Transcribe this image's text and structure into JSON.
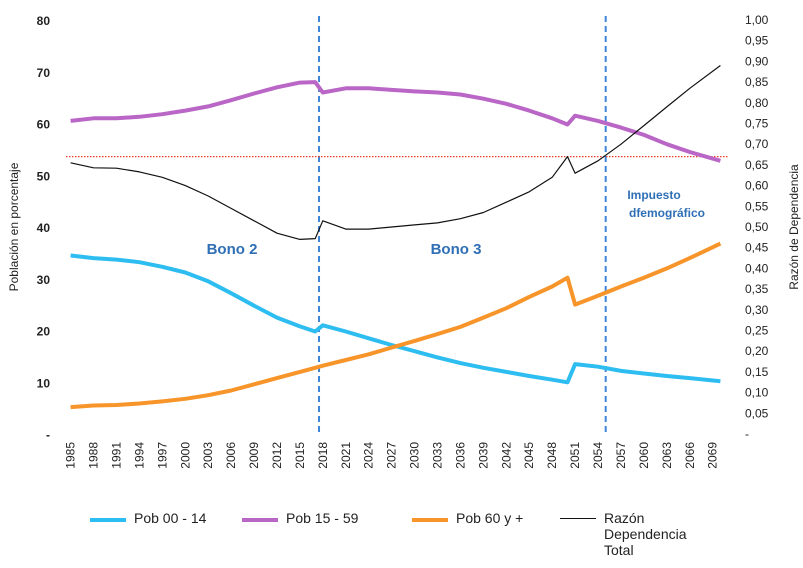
{
  "chart_data": {
    "type": "line",
    "ylabel": "Población en porcentaje",
    "y2label": "Razón de Dependencia",
    "annotations": [
      "Bono 2",
      "Bono 3",
      "Impuesto",
      "dfemográfico"
    ],
    "x": [
      1985,
      1988,
      1991,
      1994,
      1997,
      2000,
      2003,
      2006,
      2009,
      2012,
      2015,
      2017,
      2018,
      2021,
      2024,
      2027,
      2030,
      2033,
      2036,
      2039,
      2042,
      2045,
      2048,
      2050,
      2051,
      2054,
      2057,
      2060,
      2063,
      2066,
      2070
    ],
    "xlim": [
      1984.4,
      2071
    ],
    "xticks": [
      1985,
      1988,
      1991,
      1994,
      1997,
      2000,
      2003,
      2006,
      2009,
      2012,
      2015,
      2018,
      2021,
      2024,
      2027,
      2030,
      2033,
      2036,
      2039,
      2042,
      2045,
      2048,
      2051,
      2054,
      2057,
      2060,
      2063,
      2066,
      2069
    ],
    "ylim": [
      0,
      80
    ],
    "yticks": [
      {
        "value": 0,
        "label": "-"
      },
      10,
      20,
      30,
      40,
      50,
      60,
      70,
      80
    ],
    "y2lim": [
      0,
      1
    ],
    "y2ticks": [
      {
        "value": 0,
        "label": "-"
      },
      {
        "value": 0.05,
        "label": "0,05"
      },
      {
        "value": 0.1,
        "label": "0,10"
      },
      {
        "value": 0.15,
        "label": "0,15"
      },
      {
        "value": 0.2,
        "label": "0,20"
      },
      {
        "value": 0.25,
        "label": "0,25"
      },
      {
        "value": 0.3,
        "label": "0,30"
      },
      {
        "value": 0.35,
        "label": "0,35"
      },
      {
        "value": 0.4,
        "label": "0,40"
      },
      {
        "value": 0.45,
        "label": "0,45"
      },
      {
        "value": 0.5,
        "label": "0,50"
      },
      {
        "value": 0.55,
        "label": "0,55"
      },
      {
        "value": 0.6,
        "label": "0,60"
      },
      {
        "value": 0.65,
        "label": "0,65"
      },
      {
        "value": 0.7,
        "label": "0,70"
      },
      {
        "value": 0.75,
        "label": "0,75"
      },
      {
        "value": 0.8,
        "label": "0,80"
      },
      {
        "value": 0.85,
        "label": "0,85"
      },
      {
        "value": 0.9,
        "label": "0,90"
      },
      {
        "value": 0.95,
        "label": "0,95"
      },
      {
        "value": 1,
        "label": "1,00"
      }
    ],
    "vlines": [
      2017.5,
      2055
    ],
    "vline_color": "#3d85d8",
    "hline_y2": 0.67,
    "hline_color": "#e8402a",
    "series": [
      {
        "name": "Pob 00 - 14",
        "color": "#2ebdf0",
        "width": 4,
        "values": [
          34.5,
          34,
          33.7,
          33.2,
          32.3,
          31.2,
          29.5,
          27.2,
          24.8,
          22.5,
          20.8,
          19.8,
          21,
          19.8,
          18.5,
          17.2,
          16,
          14.8,
          13.7,
          12.8,
          12,
          11.2,
          10.5,
          10,
          13.5,
          13,
          12.2,
          11.7,
          11.2,
          10.8,
          10.2
        ]
      },
      {
        "name": "Pob 15 - 59",
        "color": "#b966c6",
        "width": 4,
        "values": [
          60.5,
          61,
          61,
          61.3,
          61.8,
          62.5,
          63.3,
          64.5,
          65.8,
          67,
          67.9,
          68,
          66,
          66.8,
          66.8,
          66.5,
          66.2,
          66,
          65.6,
          64.8,
          63.8,
          62.5,
          61,
          59.8,
          61.5,
          60.5,
          59.2,
          57.8,
          56,
          54.5,
          52.8
        ]
      },
      {
        "name": "Pob 60 y +",
        "color": "#f7952a",
        "width": 4,
        "values": [
          5.2,
          5.5,
          5.6,
          5.9,
          6.3,
          6.8,
          7.5,
          8.4,
          9.6,
          10.8,
          12,
          12.8,
          13.2,
          14.3,
          15.4,
          16.7,
          18,
          19.3,
          20.7,
          22.5,
          24.3,
          26.5,
          28.5,
          30.2,
          25,
          26.7,
          28.5,
          30.2,
          32,
          34,
          36.8
        ]
      },
      {
        "name": "Razón Dependencia Total",
        "color": "#111111",
        "width": 1.2,
        "axis": "y2",
        "values": [
          0.655,
          0.643,
          0.642,
          0.633,
          0.62,
          0.6,
          0.575,
          0.545,
          0.515,
          0.485,
          0.47,
          0.472,
          0.515,
          0.495,
          0.495,
          0.5,
          0.505,
          0.51,
          0.52,
          0.535,
          0.56,
          0.585,
          0.62,
          0.67,
          0.63,
          0.66,
          0.7,
          0.745,
          0.79,
          0.835,
          0.89
        ]
      }
    ]
  }
}
